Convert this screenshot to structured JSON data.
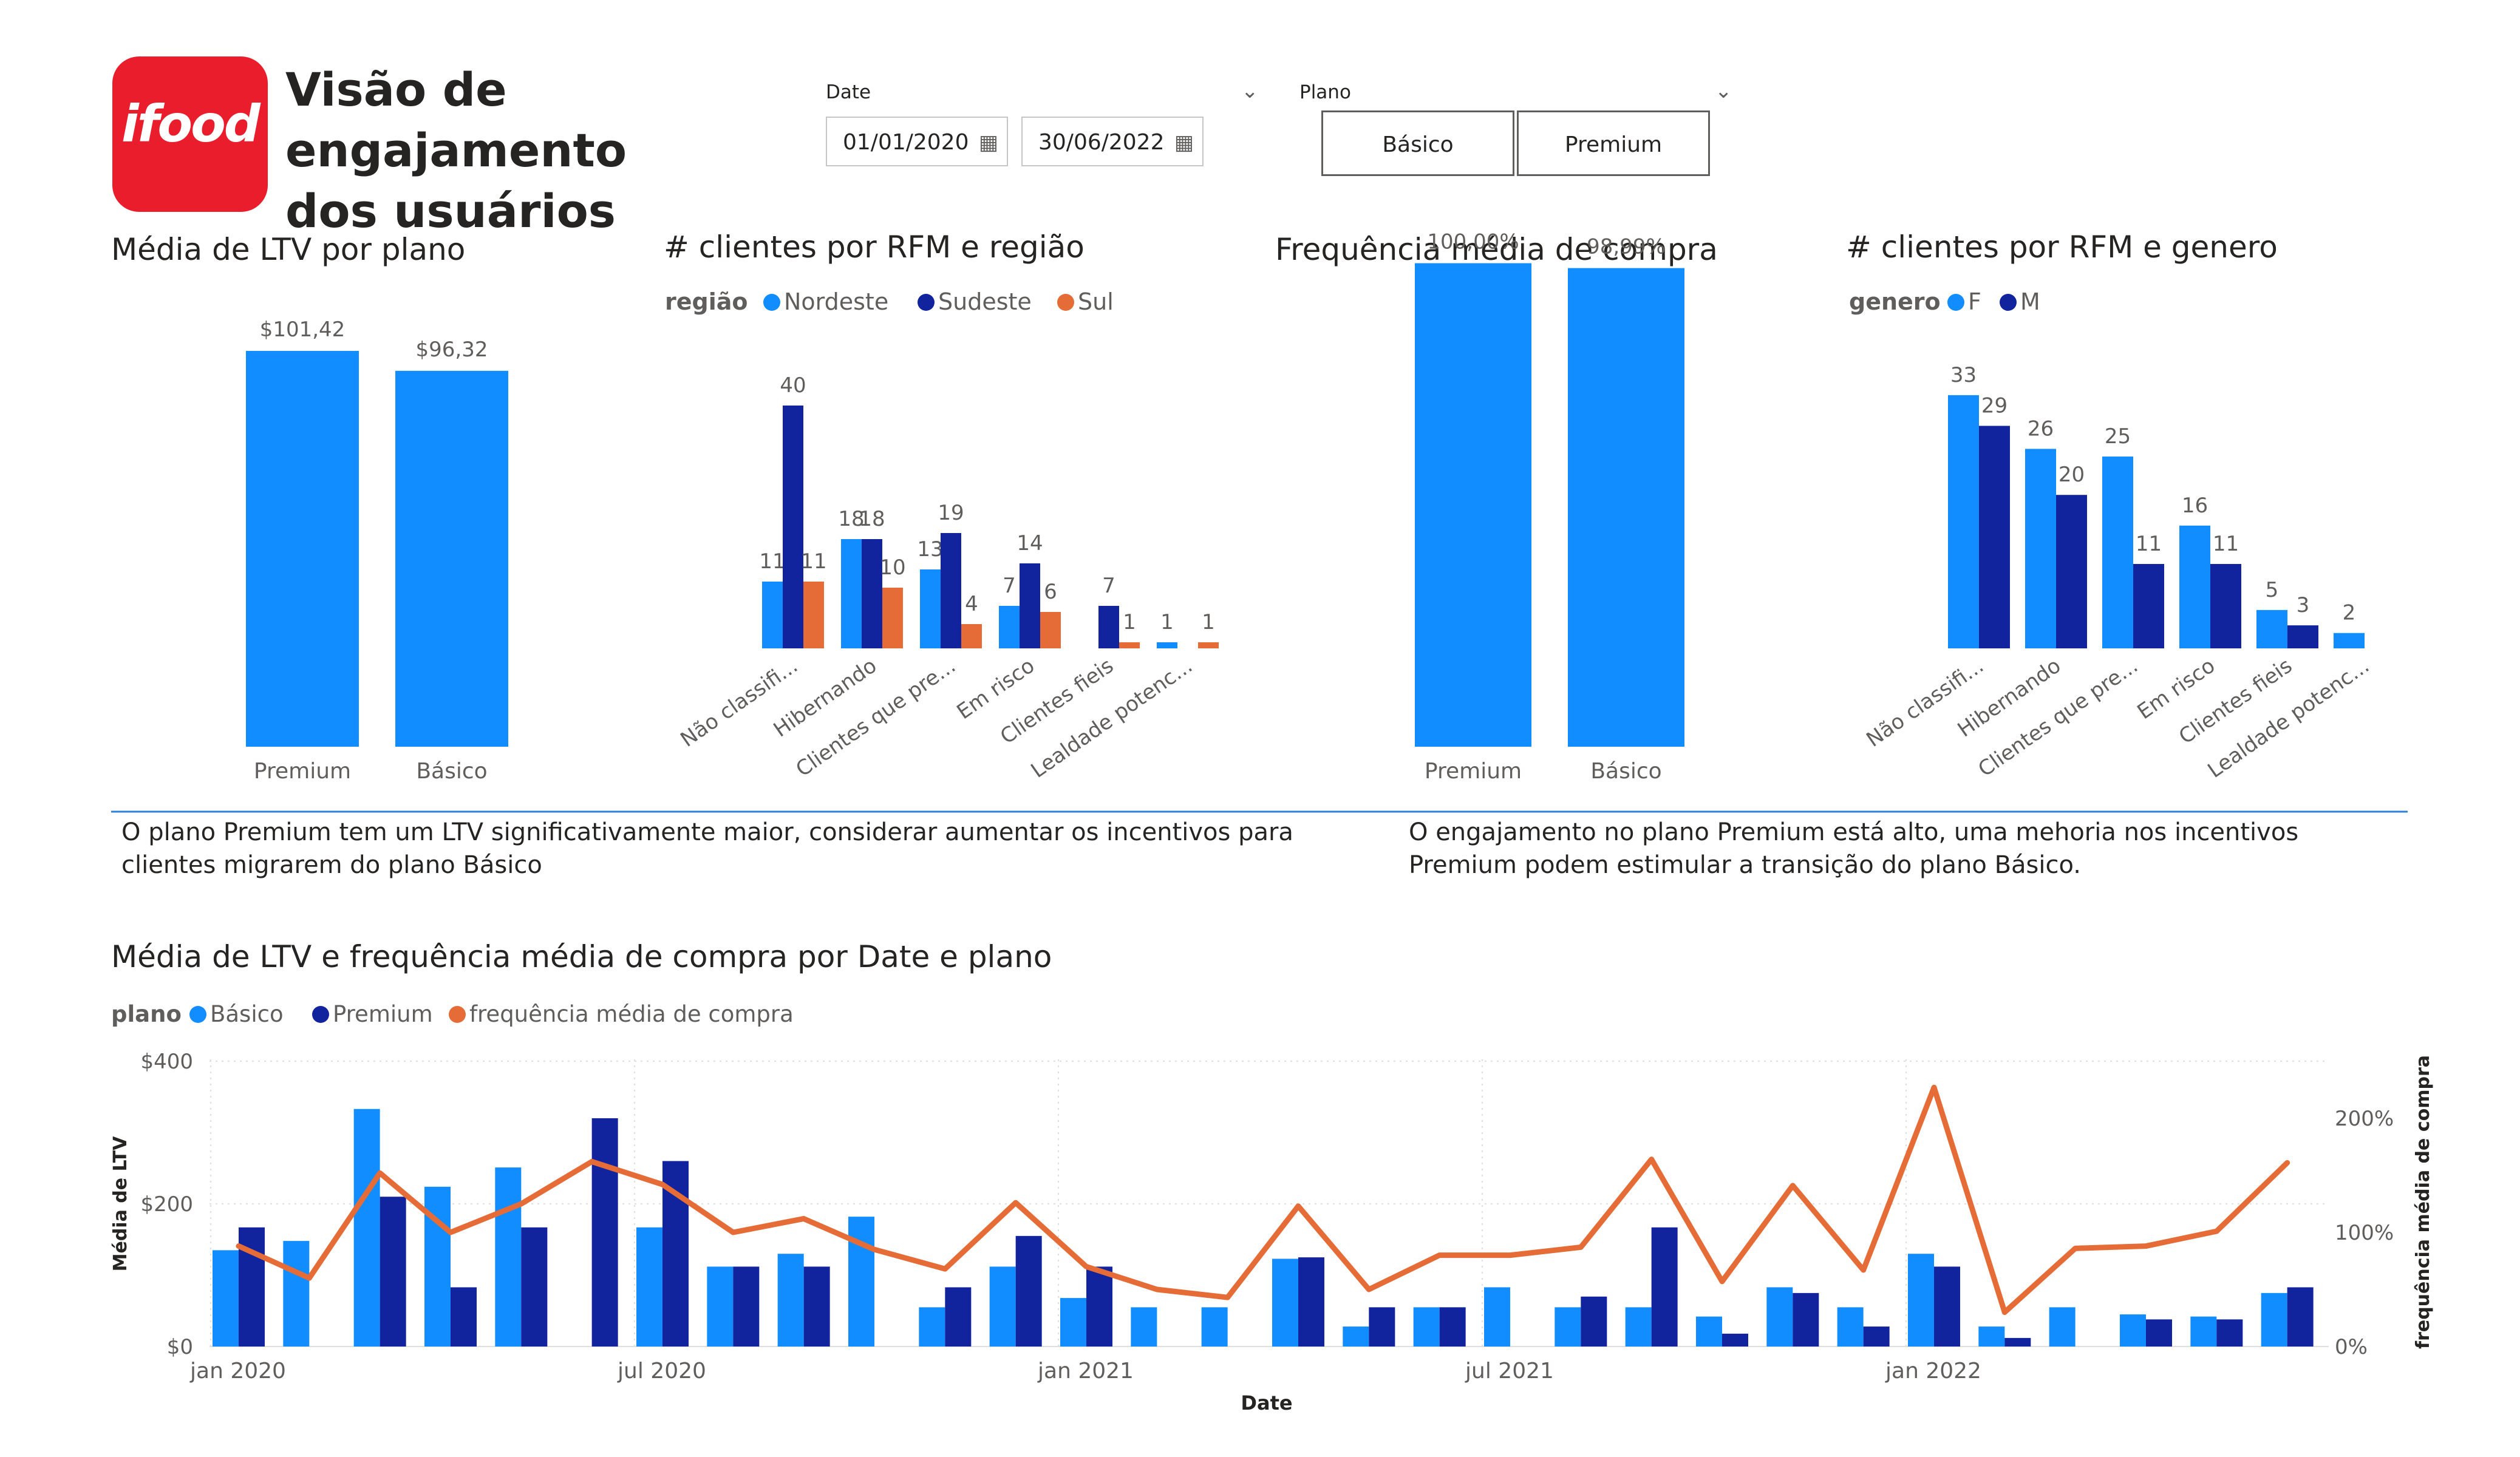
{
  "header": {
    "logo_text": "ifood",
    "title_line1": "Visão de engajamento",
    "title_line2": "dos usuários"
  },
  "filters": {
    "date_title": "Date",
    "date_start": "01/01/2020",
    "date_end": "30/06/2022",
    "plan_title": "Plano",
    "plan_options": [
      "Básico",
      "Premium"
    ]
  },
  "notes": {
    "left": "O plano Premium tem um LTV significativamente maior, considerar aumentar os incentivos para clientes migrarem do plano Básico",
    "right": "O engajamento no plano Premium está alto, uma mehoria nos incentivos Premium podem estimular a transição do plano Básico."
  },
  "colors": {
    "light": "#118dff",
    "dark": "#12239e",
    "orange": "#e66c37",
    "axis": "#605e5c"
  },
  "chart_data": [
    {
      "id": "ltv_by_plan",
      "type": "bar",
      "title": "Média de LTV por plano",
      "categories": [
        "Premium",
        "Básico"
      ],
      "values": [
        101.42,
        96.32
      ],
      "data_labels": [
        "$101,42",
        "$96,32"
      ],
      "ylim": [
        0,
        140
      ]
    },
    {
      "id": "rfm_region",
      "type": "bar",
      "title": "# clientes por RFM e região",
      "legend_title": "região",
      "categories": [
        "Não classifi...",
        "Hibernando",
        "Clientes que pre...",
        "Em risco",
        "Clientes fieis",
        "Lealdade potenc..."
      ],
      "series": [
        {
          "name": "Nordeste",
          "color": "#118dff",
          "values": [
            11,
            18,
            13,
            7,
            null,
            1
          ]
        },
        {
          "name": "Sudeste",
          "color": "#12239e",
          "values": [
            40,
            18,
            19,
            14,
            7,
            null
          ]
        },
        {
          "name": "Sul",
          "color": "#e66c37",
          "values": [
            11,
            10,
            4,
            6,
            1,
            1
          ]
        }
      ],
      "ylim": [
        0,
        44
      ]
    },
    {
      "id": "freq_by_plan",
      "type": "bar",
      "title": "Frequência média de compra",
      "categories": [
        "Premium",
        "Básico"
      ],
      "values": [
        100.0,
        98.99
      ],
      "data_labels": [
        "100,00%",
        "98,99%"
      ],
      "ylim": [
        0,
        113
      ]
    },
    {
      "id": "rfm_gender",
      "type": "bar",
      "title": "# clientes por RFM e genero",
      "legend_title": "genero",
      "categories": [
        "Não classifi...",
        "Hibernando",
        "Clientes que pre...",
        "Em risco",
        "Clientes fieis",
        "Lealdade potenc..."
      ],
      "series": [
        {
          "name": "F",
          "color": "#118dff",
          "values": [
            33,
            26,
            25,
            16,
            5,
            2
          ]
        },
        {
          "name": "M",
          "color": "#12239e",
          "values": [
            29,
            20,
            11,
            11,
            3,
            null
          ]
        }
      ],
      "ylim": [
        0,
        36
      ]
    },
    {
      "id": "ltv_freq_time",
      "type": "bar",
      "title": "Média de LTV e frequência média de compra por Date e plano",
      "legend_title": "plano",
      "xlabel": "Date",
      "ylabel": "Média de LTV",
      "y2label": "frequência média de compra",
      "x": [
        "2020-01",
        "2020-02",
        "2020-03",
        "2020-04",
        "2020-05",
        "2020-06",
        "2020-07",
        "2020-08",
        "2020-09",
        "2020-10",
        "2020-11",
        "2020-12",
        "2021-01",
        "2021-02",
        "2021-03",
        "2021-04",
        "2021-05",
        "2021-06",
        "2021-07",
        "2021-08",
        "2021-09",
        "2021-10",
        "2021-11",
        "2021-12",
        "2022-01",
        "2022-02",
        "2022-03",
        "2022-04",
        "2022-05",
        "2022-06"
      ],
      "x_tick_labels": [
        "jan 2020",
        "jul 2020",
        "jan 2021",
        "jul 2021",
        "jan 2022"
      ],
      "y_tick_labels": [
        "$0",
        "$200",
        "$400"
      ],
      "y2_tick_labels": [
        "0%",
        "100%",
        "200%"
      ],
      "ylim": [
        0,
        400
      ],
      "y2lim": [
        0,
        250
      ],
      "series": [
        {
          "name": "Básico",
          "color": "#118dff",
          "values": [
            135,
            148,
            333,
            224,
            251,
            null,
            167,
            112,
            130,
            182,
            55,
            112,
            68,
            55,
            55,
            123,
            28,
            55,
            83,
            55,
            55,
            42,
            83,
            55,
            130,
            28,
            55,
            45,
            42,
            75
          ]
        },
        {
          "name": "Premium",
          "color": "#12239e",
          "values": [
            167,
            null,
            210,
            83,
            167,
            320,
            260,
            112,
            112,
            null,
            83,
            155,
            112,
            null,
            null,
            125,
            55,
            55,
            null,
            70,
            167,
            18,
            75,
            28,
            112,
            12,
            null,
            38,
            38,
            83
          ]
        },
        {
          "name": "frequência média de compra",
          "color": "#e66c37",
          "type": "line",
          "values": [
            88,
            60,
            152,
            100,
            125,
            162,
            142,
            100,
            112,
            85,
            68,
            126,
            70,
            50,
            43,
            123,
            50,
            80,
            80,
            87,
            164,
            57,
            141,
            67,
            227,
            30,
            86,
            88,
            101,
            161
          ]
        }
      ]
    }
  ]
}
